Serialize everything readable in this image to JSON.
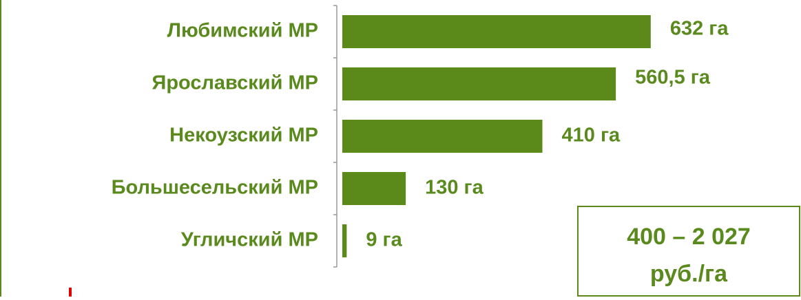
{
  "chart_data": {
    "type": "bar",
    "orientation": "horizontal",
    "categories": [
      "Любимский МР",
      "Ярославский МР",
      "Некоузский МР",
      "Большесельский МР",
      "Угличский МР"
    ],
    "values": [
      632,
      560.5,
      410,
      130,
      9
    ],
    "value_labels": [
      "632 га",
      "560,5 га",
      "410 га",
      "130 га",
      "9 га"
    ],
    "color": "#5b8a1a",
    "xlim": [
      0,
      700
    ],
    "annotation": [
      "400 – 2 027",
      "руб./га"
    ]
  }
}
